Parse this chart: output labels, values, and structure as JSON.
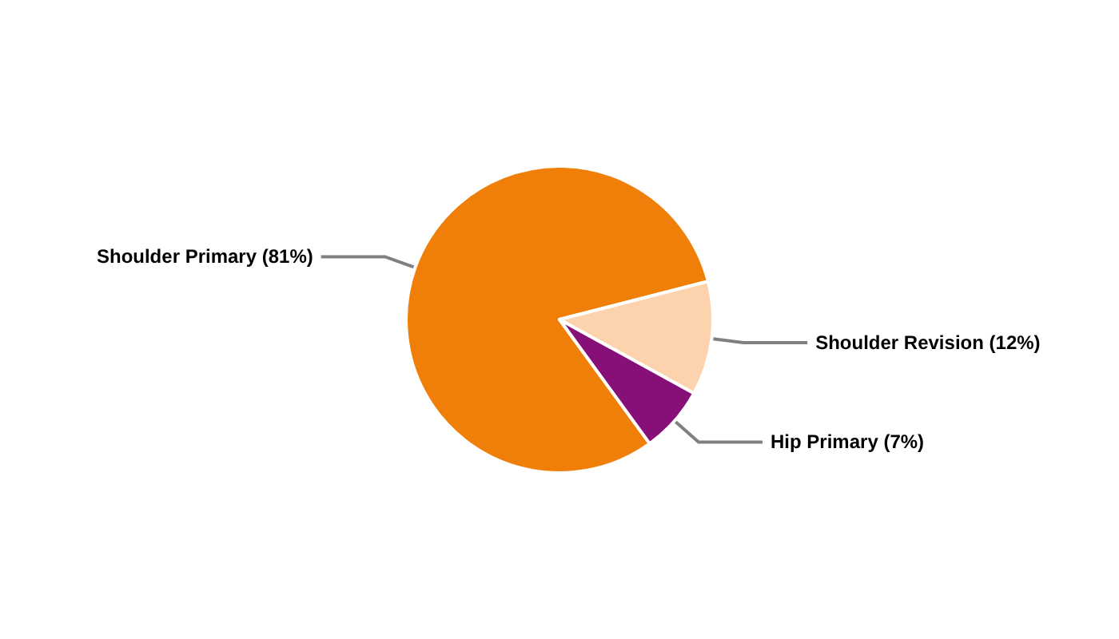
{
  "chart_data": {
    "type": "pie",
    "categories": [
      "Shoulder Primary",
      "Shoulder Revision",
      "Hip Primary"
    ],
    "values": [
      81,
      12,
      7
    ],
    "value_labels": [
      "(81%)",
      "(12%)",
      "(7%)"
    ],
    "colors": [
      "#f07f09",
      "#fdd3ae",
      "#861078"
    ],
    "legend": false
  }
}
